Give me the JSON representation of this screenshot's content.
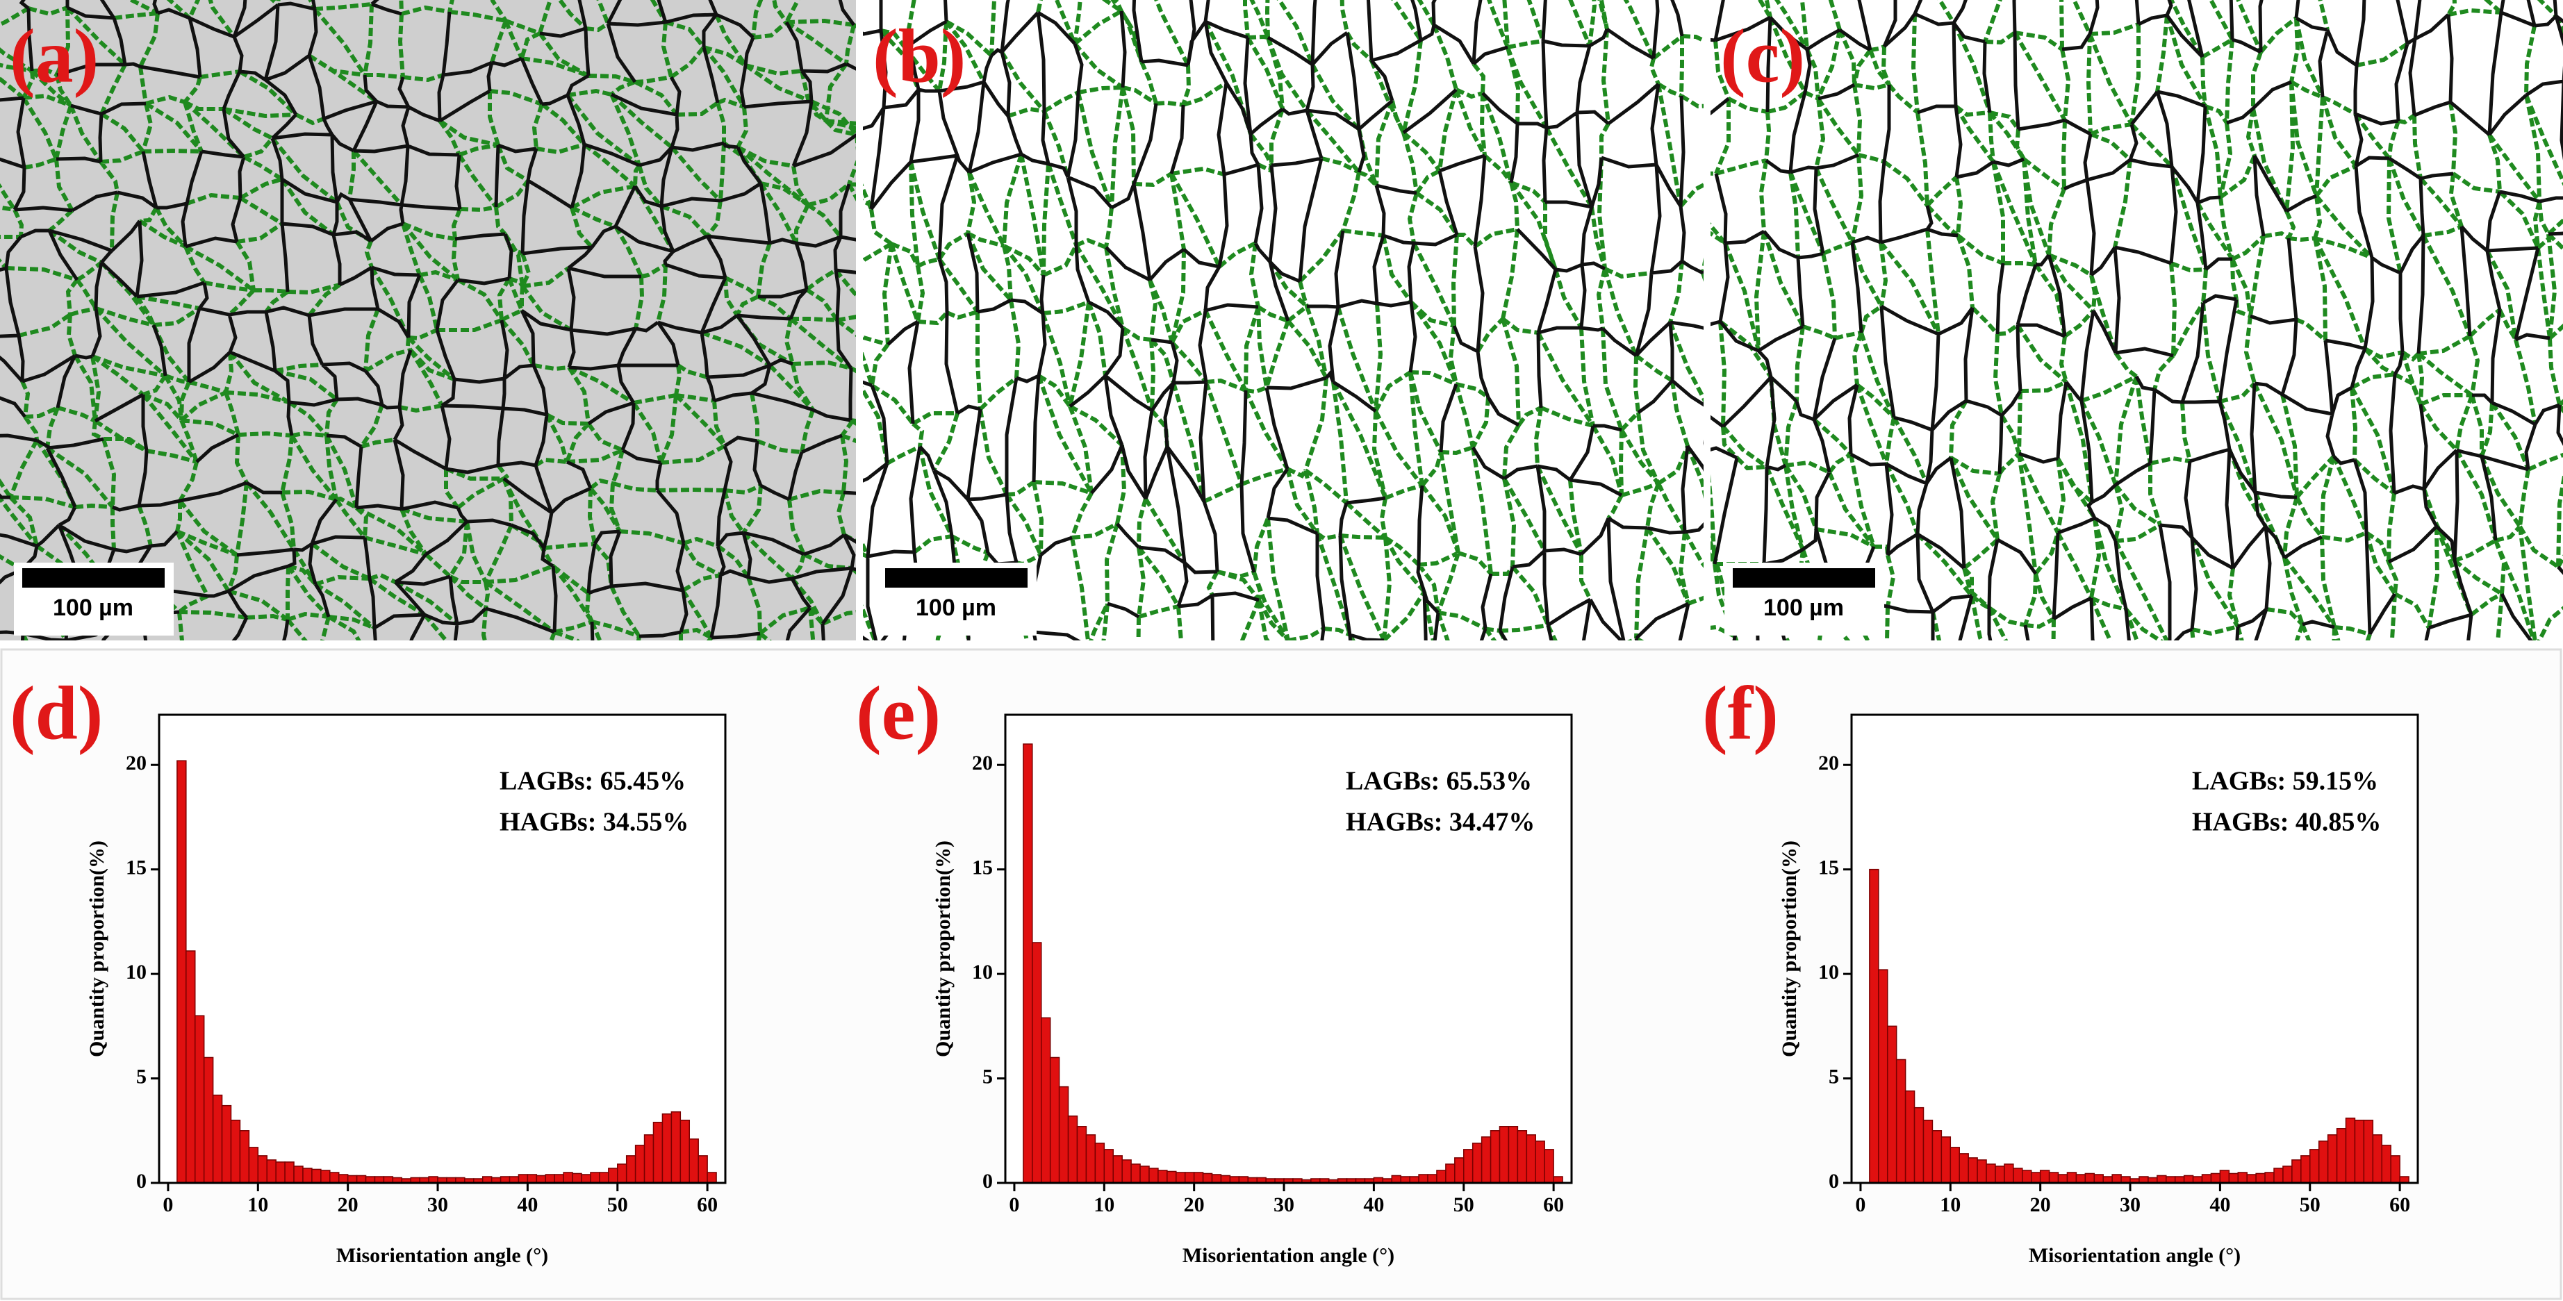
{
  "micrographs": [
    {
      "label": "(a)",
      "scale_bar": "100 µm"
    },
    {
      "label": "(b)",
      "scale_bar": "100 µm"
    },
    {
      "label": "(c)",
      "scale_bar": "100 µm"
    }
  ],
  "chart_data": [
    {
      "type": "histogram",
      "panel_label": "(d)",
      "annotations": [
        "LAGBs: 65.45%",
        "HAGBs: 34.55%"
      ],
      "x_label": "Misorientation angle (°)",
      "y_label": "Quantity proportion(%)",
      "color": "#e01010",
      "bins": [
        1,
        2,
        3,
        4,
        5,
        6,
        7,
        8,
        9,
        10,
        11,
        12,
        13,
        14,
        15,
        16,
        17,
        18,
        19,
        20,
        21,
        22,
        23,
        24,
        25,
        26,
        27,
        28,
        29,
        30,
        31,
        32,
        33,
        34,
        35,
        36,
        37,
        38,
        39,
        40,
        41,
        42,
        43,
        44,
        45,
        46,
        47,
        48,
        49,
        50,
        51,
        52,
        53,
        54,
        55,
        56,
        57,
        58,
        59,
        60,
        61
      ],
      "values": [
        20.2,
        11.1,
        8.0,
        6.0,
        4.2,
        3.7,
        3.0,
        2.5,
        1.7,
        1.3,
        1.1,
        1.0,
        1.0,
        0.8,
        0.7,
        0.65,
        0.6,
        0.5,
        0.4,
        0.35,
        0.35,
        0.3,
        0.3,
        0.3,
        0.25,
        0.2,
        0.25,
        0.25,
        0.3,
        0.25,
        0.25,
        0.25,
        0.2,
        0.2,
        0.3,
        0.25,
        0.3,
        0.3,
        0.4,
        0.4,
        0.35,
        0.4,
        0.4,
        0.5,
        0.45,
        0.4,
        0.5,
        0.5,
        0.7,
        0.9,
        1.3,
        1.8,
        2.3,
        2.9,
        3.3,
        3.4,
        3.0,
        2.1,
        1.3,
        0.5
      ],
      "xlim": [
        -1,
        62
      ],
      "ylim": [
        0,
        22.4
      ],
      "xticks": [
        0,
        10,
        20,
        30,
        40,
        50,
        60
      ],
      "yticks": [
        0,
        5,
        10,
        15,
        20
      ]
    },
    {
      "type": "histogram",
      "panel_label": "(e)",
      "annotations": [
        "LAGBs: 65.53%",
        "HAGBs: 34.47%"
      ],
      "x_label": "Misorientation angle (°)",
      "y_label": "Quantity proportion(%)",
      "color": "#e01010",
      "bins": [
        1,
        2,
        3,
        4,
        5,
        6,
        7,
        8,
        9,
        10,
        11,
        12,
        13,
        14,
        15,
        16,
        17,
        18,
        19,
        20,
        21,
        22,
        23,
        24,
        25,
        26,
        27,
        28,
        29,
        30,
        31,
        32,
        33,
        34,
        35,
        36,
        37,
        38,
        39,
        40,
        41,
        42,
        43,
        44,
        45,
        46,
        47,
        48,
        49,
        50,
        51,
        52,
        53,
        54,
        55,
        56,
        57,
        58,
        59,
        60,
        61
      ],
      "values": [
        21.0,
        11.5,
        7.9,
        6.0,
        4.6,
        3.2,
        2.7,
        2.3,
        1.9,
        1.6,
        1.3,
        1.1,
        0.9,
        0.8,
        0.7,
        0.6,
        0.55,
        0.5,
        0.5,
        0.5,
        0.45,
        0.4,
        0.35,
        0.3,
        0.3,
        0.25,
        0.25,
        0.2,
        0.2,
        0.2,
        0.2,
        0.15,
        0.2,
        0.2,
        0.15,
        0.2,
        0.2,
        0.2,
        0.2,
        0.25,
        0.2,
        0.35,
        0.3,
        0.3,
        0.4,
        0.4,
        0.6,
        0.9,
        1.2,
        1.6,
        1.9,
        2.2,
        2.5,
        2.7,
        2.7,
        2.5,
        2.3,
        2.0,
        1.6,
        0.3
      ],
      "xlim": [
        -1,
        62
      ],
      "ylim": [
        0,
        22.4
      ],
      "xticks": [
        0,
        10,
        20,
        30,
        40,
        50,
        60
      ],
      "yticks": [
        0,
        5,
        10,
        15,
        20
      ]
    },
    {
      "type": "histogram",
      "panel_label": "(f)",
      "annotations": [
        "LAGBs: 59.15%",
        "HAGBs: 40.85%"
      ],
      "x_label": "Misorientation angle (°)",
      "y_label": "Quantity proportion(%)",
      "color": "#e01010",
      "bins": [
        1,
        2,
        3,
        4,
        5,
        6,
        7,
        8,
        9,
        10,
        11,
        12,
        13,
        14,
        15,
        16,
        17,
        18,
        19,
        20,
        21,
        22,
        23,
        24,
        25,
        26,
        27,
        28,
        29,
        30,
        31,
        32,
        33,
        34,
        35,
        36,
        37,
        38,
        39,
        40,
        41,
        42,
        43,
        44,
        45,
        46,
        47,
        48,
        49,
        50,
        51,
        52,
        53,
        54,
        55,
        56,
        57,
        58,
        59,
        60,
        61
      ],
      "values": [
        15.0,
        10.2,
        7.5,
        5.9,
        4.4,
        3.6,
        3.0,
        2.5,
        2.2,
        1.7,
        1.4,
        1.2,
        1.1,
        0.9,
        0.8,
        0.9,
        0.7,
        0.6,
        0.5,
        0.6,
        0.5,
        0.4,
        0.5,
        0.4,
        0.45,
        0.4,
        0.3,
        0.4,
        0.3,
        0.2,
        0.3,
        0.25,
        0.35,
        0.3,
        0.3,
        0.35,
        0.3,
        0.4,
        0.45,
        0.6,
        0.45,
        0.5,
        0.4,
        0.45,
        0.5,
        0.7,
        0.8,
        1.1,
        1.3,
        1.6,
        2.0,
        2.3,
        2.6,
        3.1,
        3.0,
        3.0,
        2.3,
        1.8,
        1.3,
        0.3
      ],
      "xlim": [
        -1,
        62
      ],
      "ylim": [
        0,
        22.4
      ],
      "xticks": [
        0,
        10,
        20,
        30,
        40,
        50,
        60
      ],
      "yticks": [
        0,
        5,
        10,
        15,
        20
      ]
    }
  ]
}
